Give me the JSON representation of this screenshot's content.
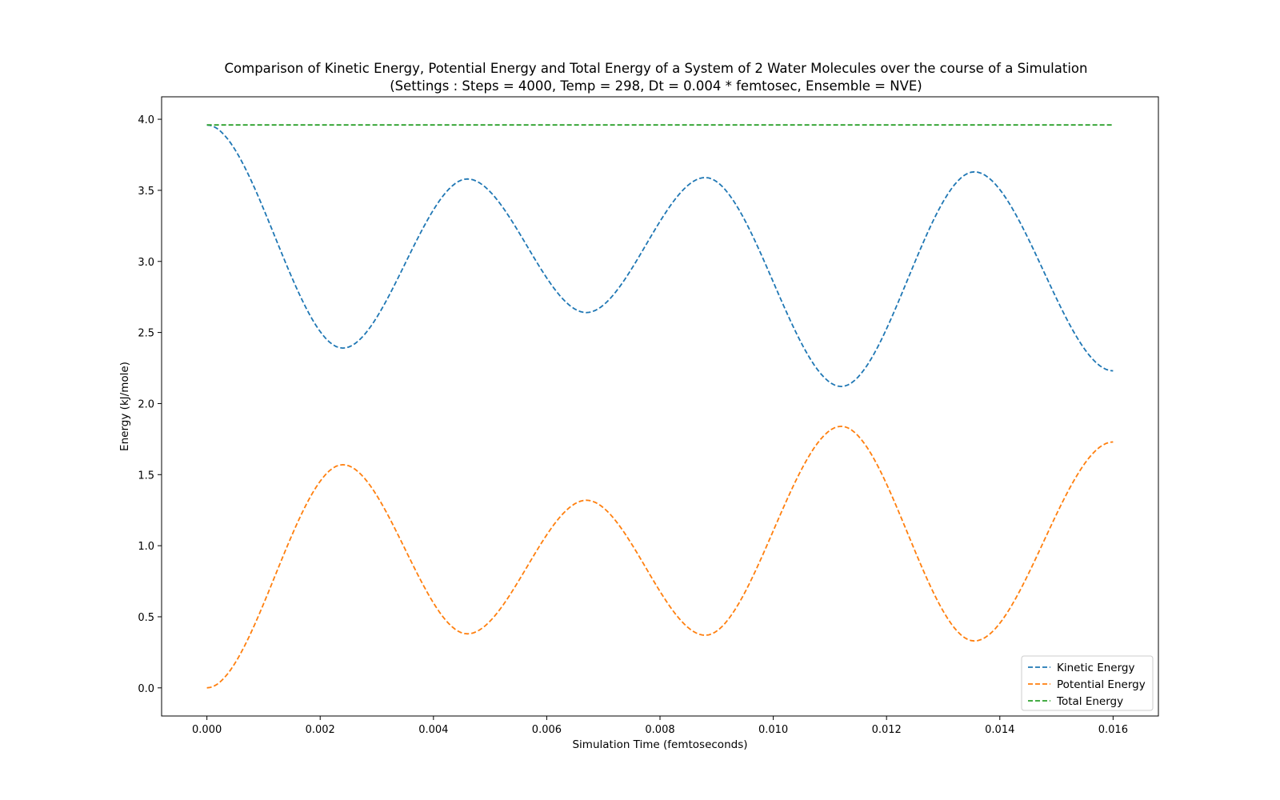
{
  "chart_data": {
    "type": "line",
    "title": "Comparison of Kinetic Energy, Potential Energy and Total Energy of a System of 2 Water Molecules over the course of a Simulation",
    "subtitle": "(Settings : Steps = 4000, Temp = 298, Dt = 0.004 * femtosec, Ensemble = NVE)",
    "xlabel": "Simulation Time (femtoseconds)",
    "ylabel": "Energy (kJ/mole)",
    "xlim": [
      -0.0008,
      0.0168
    ],
    "ylim": [
      -0.198,
      4.158
    ],
    "xticks": [
      0.0,
      0.002,
      0.004,
      0.006,
      0.008,
      0.01,
      0.012,
      0.014,
      0.016
    ],
    "xtick_labels": [
      "0.000",
      "0.002",
      "0.004",
      "0.006",
      "0.008",
      "0.010",
      "0.012",
      "0.014",
      "0.016"
    ],
    "yticks": [
      0.0,
      0.5,
      1.0,
      1.5,
      2.0,
      2.5,
      3.0,
      3.5,
      4.0
    ],
    "ytick_labels": [
      "0.0",
      "0.5",
      "1.0",
      "1.5",
      "2.0",
      "2.5",
      "3.0",
      "3.5",
      "4.0"
    ],
    "grid": false,
    "legend_position": "lower-right",
    "line_style": "dashed",
    "series": [
      {
        "name": "Kinetic Energy",
        "color": "#1f77b4",
        "points": [
          [
            0.0,
            3.96
          ],
          [
            0.0024,
            2.39
          ],
          [
            0.0046,
            3.58
          ],
          [
            0.0067,
            2.64
          ],
          [
            0.0088,
            3.59
          ],
          [
            0.0112,
            2.12
          ],
          [
            0.01355,
            3.63
          ],
          [
            0.016,
            2.23
          ]
        ]
      },
      {
        "name": "Potential Energy",
        "color": "#ff7f0e",
        "points": [
          [
            0.0,
            0.0
          ],
          [
            0.0024,
            1.57
          ],
          [
            0.0046,
            0.38
          ],
          [
            0.0067,
            1.32
          ],
          [
            0.0088,
            0.37
          ],
          [
            0.0112,
            1.84
          ],
          [
            0.01355,
            0.33
          ],
          [
            0.016,
            1.73
          ]
        ]
      },
      {
        "name": "Total Energy",
        "color": "#2ca02c",
        "points": [
          [
            0.0,
            3.96
          ],
          [
            0.016,
            3.96
          ]
        ]
      }
    ]
  }
}
